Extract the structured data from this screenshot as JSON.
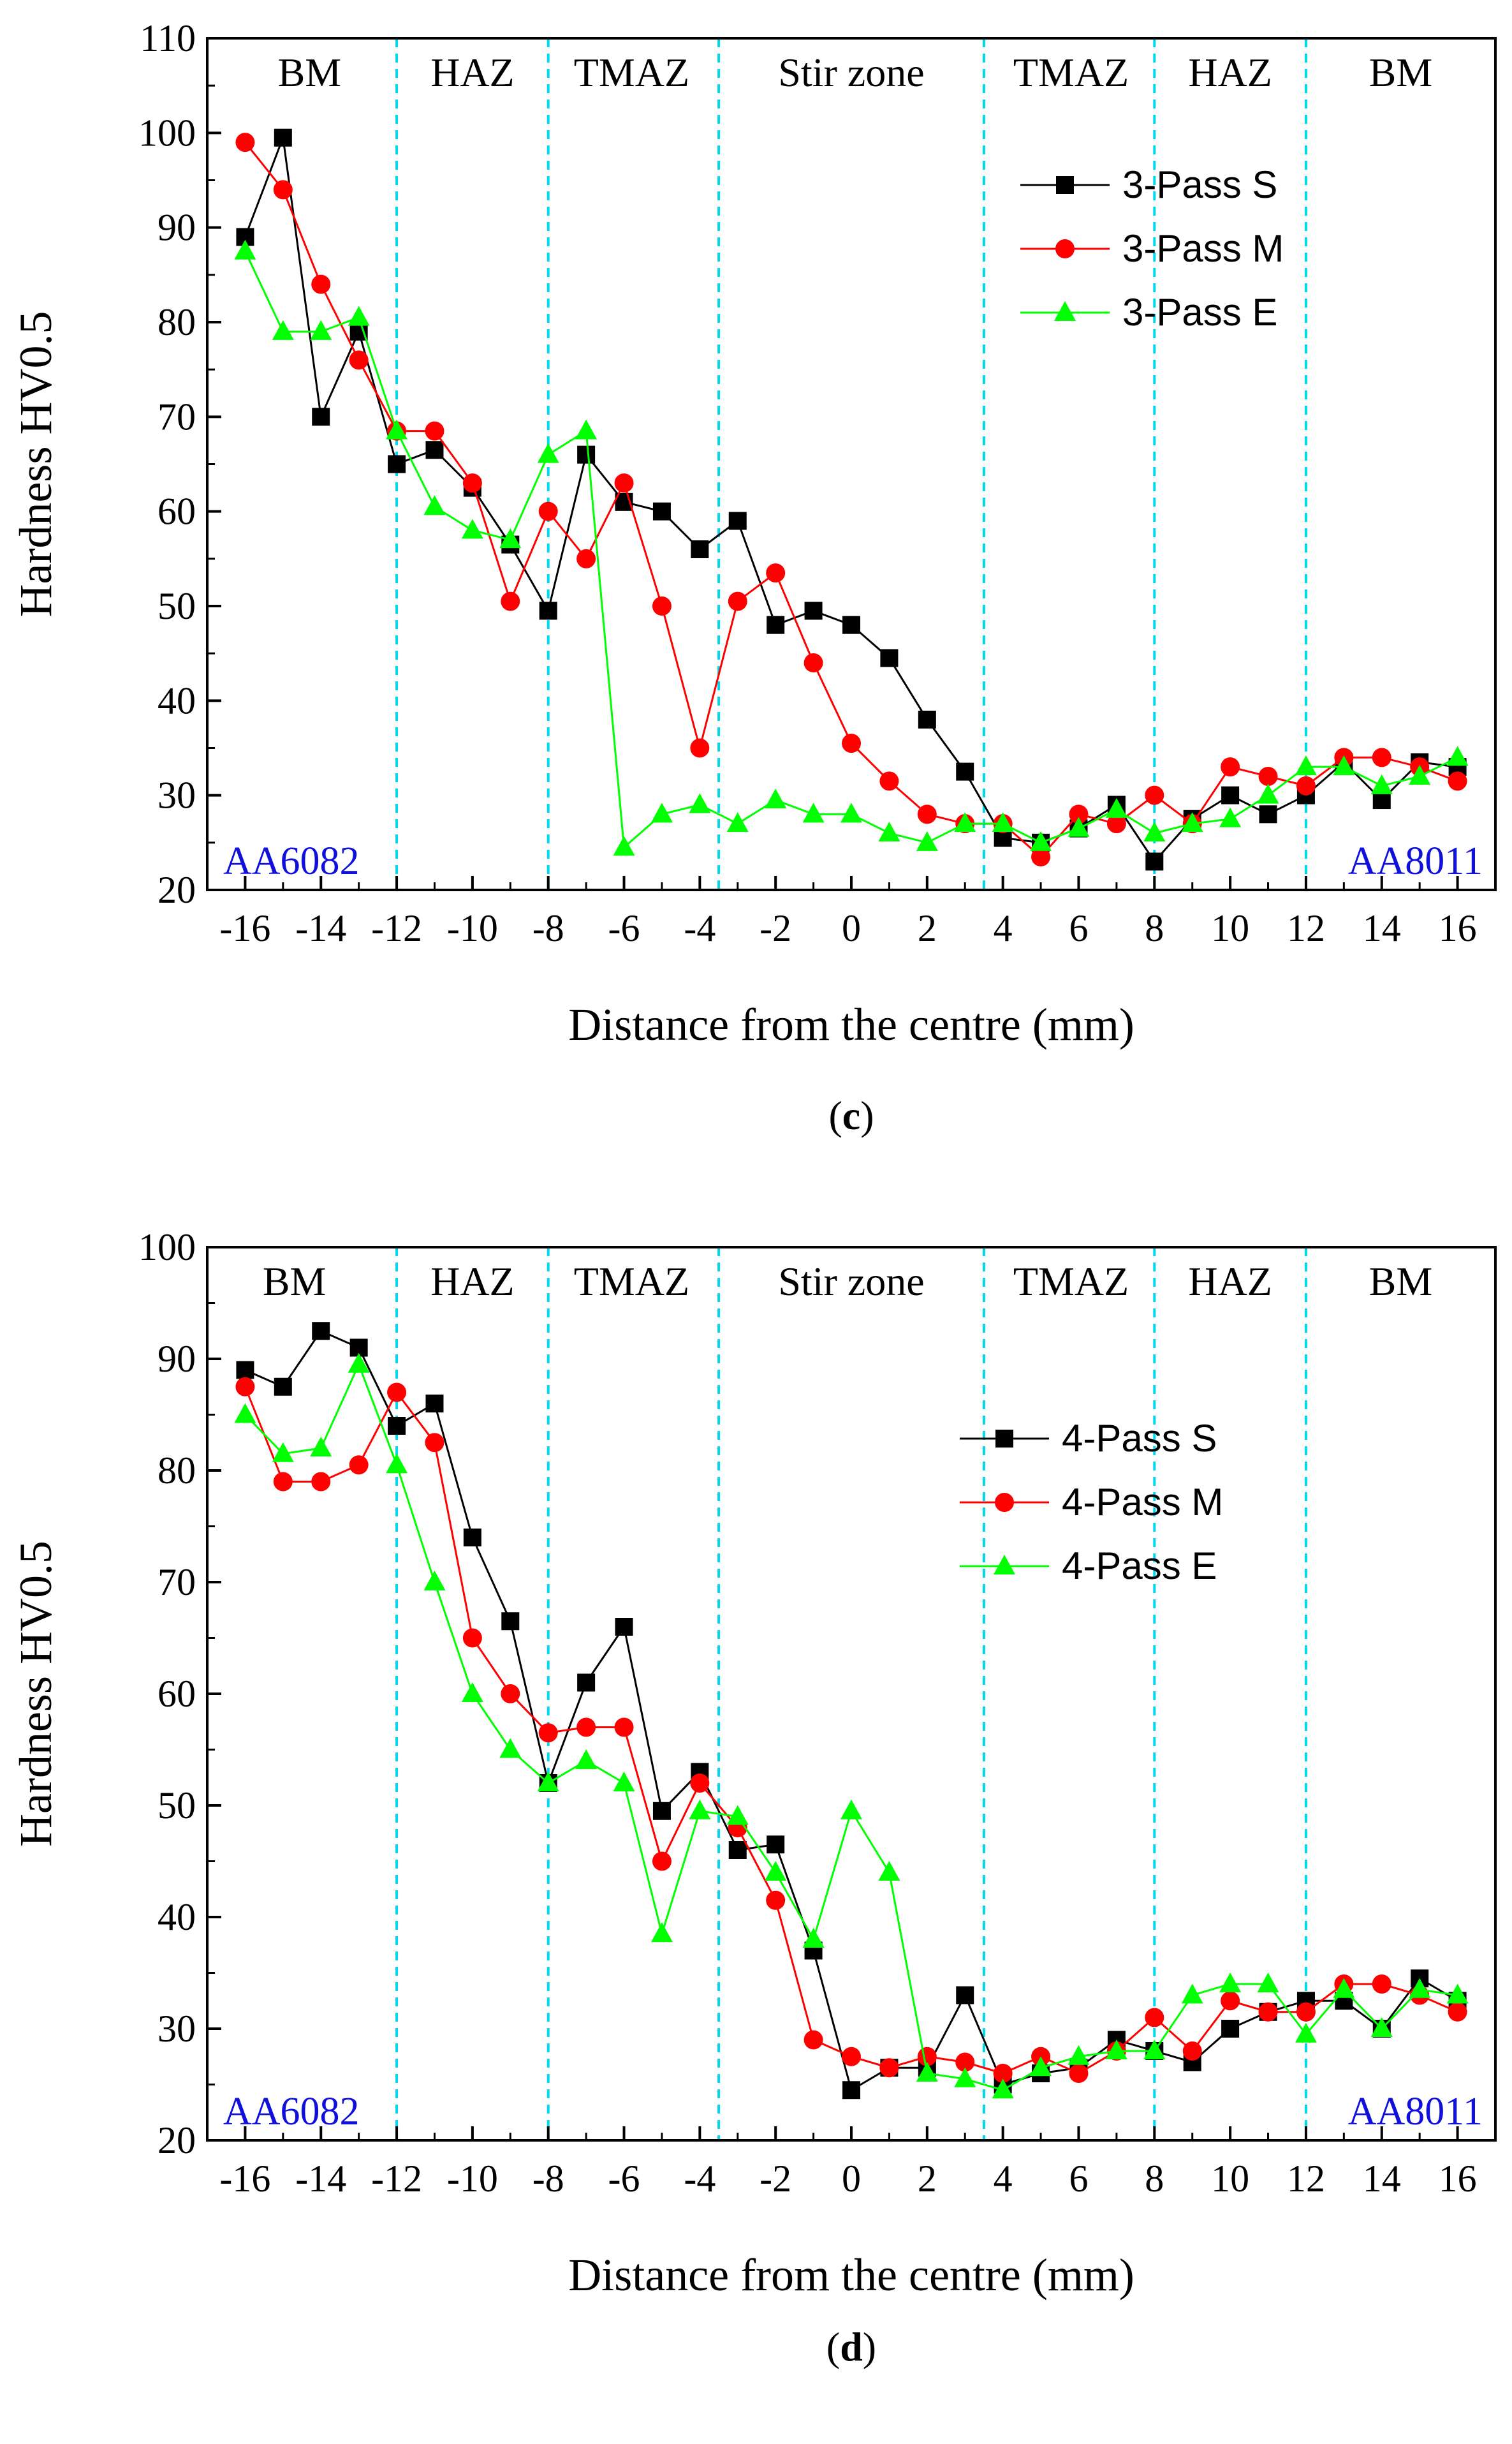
{
  "colors": {
    "S": "#000000",
    "M": "#ff0000",
    "E": "#00ff00",
    "zone_line": "#00d8f0",
    "material_label": "#1010dd"
  },
  "chart_data": [
    {
      "type": "line",
      "panel_label": "c",
      "xlabel": "Distance from the centre (mm)",
      "ylabel": "Hardness HV0.5",
      "xlim": [
        -17,
        17
      ],
      "ylim": [
        20,
        110
      ],
      "xticks": [
        -16,
        -14,
        -12,
        -10,
        -8,
        -6,
        -4,
        -2,
        0,
        2,
        4,
        6,
        8,
        10,
        12,
        14,
        16
      ],
      "yticks": [
        20,
        30,
        40,
        50,
        60,
        70,
        80,
        90,
        100,
        110
      ],
      "zone_boundaries": [
        -12,
        -8,
        -3.5,
        3.5,
        8,
        12
      ],
      "zones": [
        {
          "label": "BM",
          "x": -14.3
        },
        {
          "label": "HAZ",
          "x": -10
        },
        {
          "label": "TMAZ",
          "x": -5.8
        },
        {
          "label": "Stir zone",
          "x": 0
        },
        {
          "label": "TMAZ",
          "x": 5.8
        },
        {
          "label": "HAZ",
          "x": 10
        },
        {
          "label": "BM",
          "x": 14.5
        }
      ],
      "material_left": "AA6082",
      "material_right": "AA8011",
      "x": [
        -16,
        -15,
        -14,
        -13,
        -12,
        -11,
        -10,
        -9,
        -8,
        -7,
        -6,
        -5,
        -4,
        -3,
        -2,
        -1,
        0,
        1,
        2,
        3,
        4,
        5,
        6,
        7,
        8,
        9,
        10,
        11,
        12,
        13,
        14,
        15,
        16
      ],
      "series": [
        {
          "name": "3-Pass S",
          "key": "S",
          "marker": "square",
          "values": [
            89,
            99.5,
            70,
            79,
            65,
            66.5,
            62.5,
            56.5,
            49.5,
            66,
            61,
            60,
            56,
            59,
            48,
            49.5,
            48,
            44.5,
            38,
            32.5,
            25.5,
            25,
            26.5,
            29,
            23,
            27.5,
            30,
            28,
            30,
            33.5,
            29.5,
            33.5,
            33
          ]
        },
        {
          "name": "3-Pass M",
          "key": "M",
          "marker": "circle",
          "values": [
            99,
            94,
            84,
            76,
            68.5,
            68.5,
            63,
            50.5,
            60,
            55,
            63,
            50,
            35,
            50.5,
            53.5,
            44,
            35.5,
            31.5,
            28,
            27,
            27,
            23.5,
            28,
            27,
            30,
            27,
            33,
            32,
            31,
            34,
            34,
            33,
            31.5
          ]
        },
        {
          "name": "3-Pass E",
          "key": "E",
          "marker": "triangle",
          "values": [
            87.5,
            79,
            79,
            80.5,
            68.5,
            60.5,
            58,
            57,
            66,
            68.5,
            24.5,
            28,
            29,
            27,
            29.5,
            28,
            28,
            26,
            25,
            27,
            27,
            25,
            26.5,
            28.5,
            26,
            27,
            27.5,
            30,
            33,
            33,
            31,
            32,
            34
          ]
        }
      ]
    },
    {
      "type": "line",
      "panel_label": "d",
      "xlabel": "Distance from the centre (mm)",
      "ylabel": "Hardness HV0.5",
      "xlim": [
        -17,
        17
      ],
      "ylim": [
        20,
        100
      ],
      "xticks": [
        -16,
        -14,
        -12,
        -10,
        -8,
        -6,
        -4,
        -2,
        0,
        2,
        4,
        6,
        8,
        10,
        12,
        14,
        16
      ],
      "yticks": [
        20,
        30,
        40,
        50,
        60,
        70,
        80,
        90,
        100
      ],
      "zone_boundaries": [
        -12,
        -8,
        -3.5,
        3.5,
        8,
        12
      ],
      "zones": [
        {
          "label": "BM",
          "x": -14.7
        },
        {
          "label": "HAZ",
          "x": -10
        },
        {
          "label": "TMAZ",
          "x": -5.8
        },
        {
          "label": "Stir zone",
          "x": 0
        },
        {
          "label": "TMAZ",
          "x": 5.8
        },
        {
          "label": "HAZ",
          "x": 10
        },
        {
          "label": "BM",
          "x": 14.5
        }
      ],
      "material_left": "AA6082",
      "material_right": "AA8011",
      "x": [
        -16,
        -15,
        -14,
        -13,
        -12,
        -11,
        -10,
        -9,
        -8,
        -7,
        -6,
        -5,
        -4,
        -3,
        -2,
        -1,
        0,
        1,
        2,
        3,
        4,
        5,
        6,
        7,
        8,
        9,
        10,
        11,
        12,
        13,
        14,
        15,
        16
      ],
      "series": [
        {
          "name": "4-Pass S",
          "key": "S",
          "marker": "square",
          "values": [
            89,
            87.5,
            92.5,
            91,
            84,
            86,
            74,
            66.5,
            52,
            61,
            66,
            49.5,
            53,
            46,
            46.5,
            37,
            24.5,
            26.5,
            26.5,
            33,
            25,
            26,
            26.5,
            29,
            28,
            27,
            30,
            31.5,
            32.5,
            32.5,
            30,
            34.5,
            32.5
          ]
        },
        {
          "name": "4-Pass M",
          "key": "M",
          "marker": "circle",
          "values": [
            87.5,
            79,
            79,
            80.5,
            87,
            82.5,
            65,
            60,
            56.5,
            57,
            57,
            45,
            52,
            48,
            41.5,
            29,
            27.5,
            26.5,
            27.5,
            27,
            26,
            27.5,
            26,
            28,
            31,
            28,
            32.5,
            31.5,
            31.5,
            34,
            34,
            33,
            31.5
          ]
        },
        {
          "name": "4-Pass E",
          "key": "E",
          "marker": "triangle",
          "values": [
            85,
            81.5,
            82,
            89.5,
            80.5,
            70,
            60,
            55,
            52,
            54,
            52,
            38.5,
            49.5,
            49,
            44,
            38,
            49.5,
            44,
            26,
            25.5,
            24.5,
            26.5,
            27.5,
            28,
            28,
            33,
            34,
            34,
            29.5,
            33.5,
            30,
            33.5,
            33
          ]
        }
      ]
    }
  ]
}
